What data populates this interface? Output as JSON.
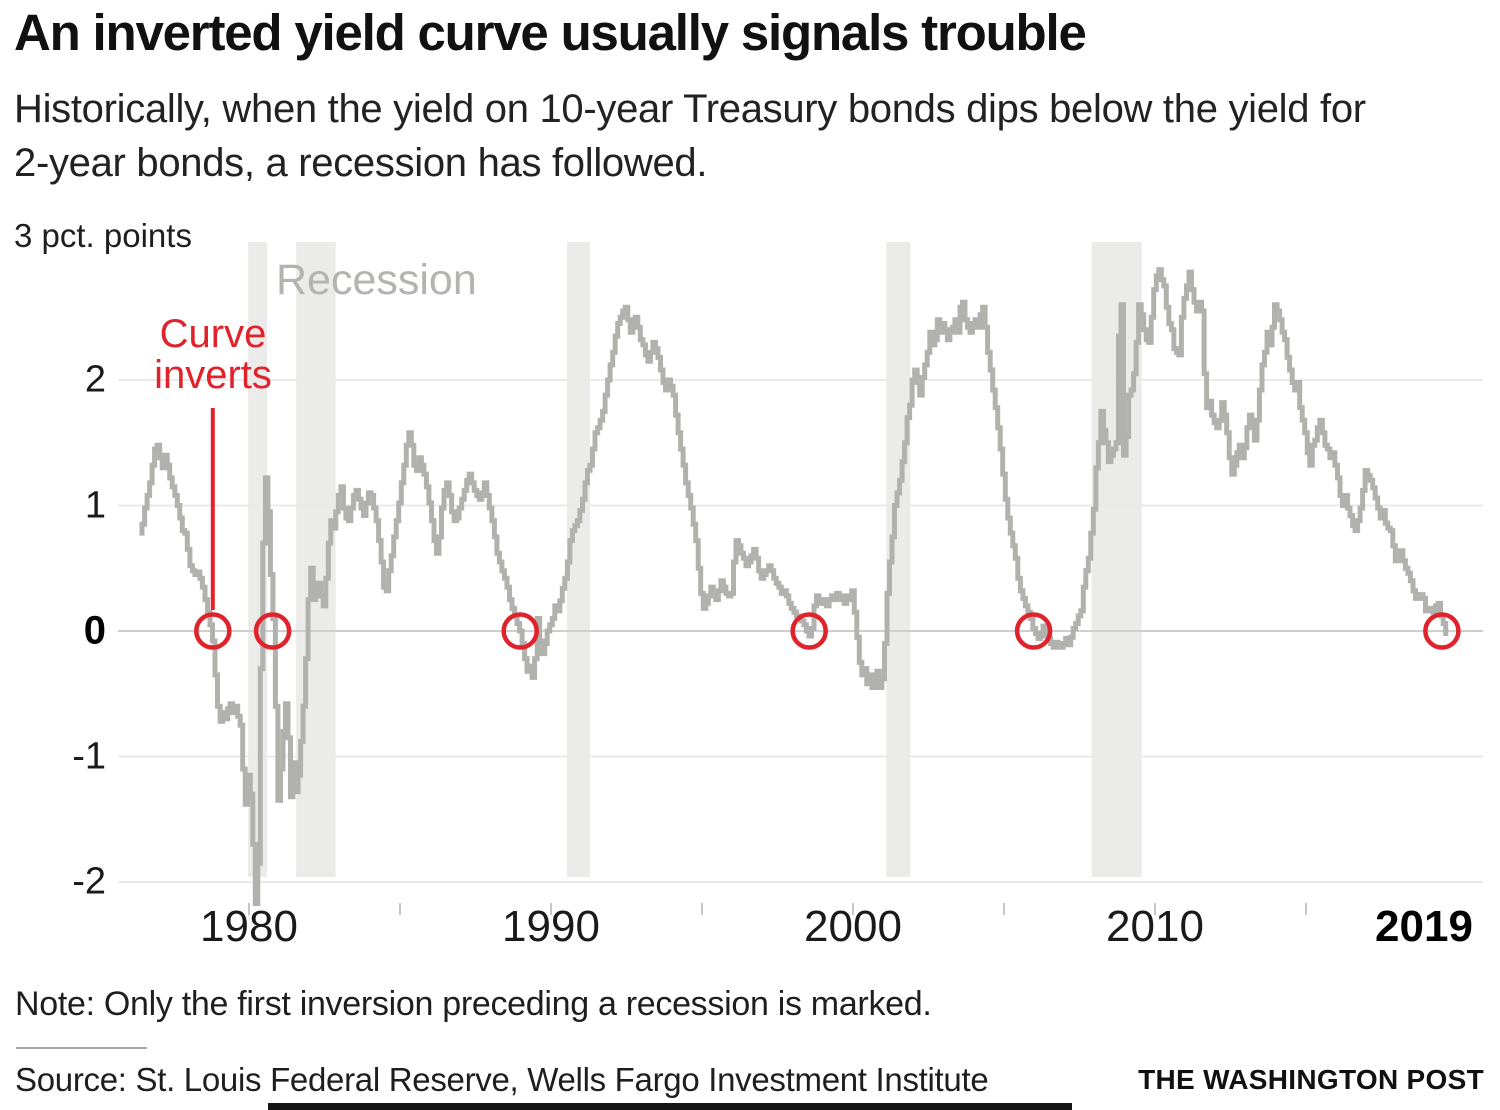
{
  "header": {
    "title": "An inverted yield curve usually signals trouble",
    "subtitle_line1": "Historically, when the yield on 10-year Treasury bonds dips below the yield for",
    "subtitle_line2": "2-year bonds, a recession has followed."
  },
  "footer": {
    "note": "Note: Only the first inversion preceding a recession is marked.",
    "source": "Source: St. Louis Federal Reserve, Wells Fargo Investment Institute",
    "credit": "THE WASHINGTON POST"
  },
  "chart_data": {
    "type": "line",
    "title": "An inverted yield curve usually signals trouble",
    "unit_label": "3 pct. points",
    "xlabel": "",
    "ylabel": "pct. points",
    "ylim": [
      -2.4,
      3
    ],
    "xlim": [
      1976.1,
      2020.3
    ],
    "grid": true,
    "y_axis": {
      "ticks": [
        2,
        1,
        0,
        -1,
        -2
      ],
      "tick_labels": [
        "2",
        "1",
        "0",
        "-1",
        "-2"
      ],
      "zero_emphasized": true
    },
    "x_axis": {
      "tick_labels": [
        "1980",
        "1990",
        "2000",
        "2010",
        "2019"
      ],
      "label_years": [
        1980,
        1990,
        2000,
        2010,
        2019
      ],
      "minor_ticks": [
        1980,
        1985,
        1990,
        1995,
        2000,
        2005,
        2010,
        2015
      ],
      "last_label_bold": true
    },
    "annotations": {
      "recession_label": "Recession",
      "inversion_label_line1": "Curve",
      "inversion_label_line2": "inverts"
    },
    "recessions": [
      [
        1979.97,
        1980.6
      ],
      [
        1981.56,
        1982.87
      ],
      [
        1990.53,
        1991.29
      ],
      [
        2001.1,
        2001.9
      ],
      [
        2007.9,
        2009.56
      ]
    ],
    "inversion_markers_years": [
      1978.8,
      1980.78,
      1988.98,
      1998.55,
      2005.98,
      2019.5
    ],
    "series": {
      "name": "10-year Treasury yield minus 2-year Treasury yield (pct. points)",
      "frequency": "monthly",
      "start_year": 1976,
      "start_month": 5,
      "values": [
        0.78,
        0.85,
        0.98,
        1.08,
        1.18,
        1.32,
        1.45,
        1.48,
        1.38,
        1.3,
        1.4,
        1.32,
        1.22,
        1.15,
        1.08,
        1.0,
        0.9,
        0.8,
        0.78,
        0.65,
        0.52,
        0.48,
        0.45,
        0.47,
        0.42,
        0.35,
        0.25,
        0.15,
        0.05,
        -0.08,
        -0.35,
        -0.6,
        -0.72,
        -0.65,
        -0.7,
        -0.62,
        -0.58,
        -0.65,
        -0.6,
        -0.68,
        -0.75,
        -1.1,
        -1.38,
        -1.15,
        -1.3,
        -1.7,
        -2.35,
        -1.85,
        -0.3,
        0.7,
        1.22,
        0.95,
        0.45,
        0.1,
        -0.6,
        -1.35,
        -1.1,
        -0.8,
        -0.58,
        -0.85,
        -1.32,
        -1.05,
        -1.28,
        -1.15,
        -0.88,
        -0.6,
        -0.22,
        0.25,
        0.5,
        0.25,
        0.3,
        0.38,
        0.28,
        0.2,
        0.42,
        0.7,
        0.88,
        0.82,
        0.95,
        1.08,
        1.15,
        0.98,
        0.9,
        0.88,
        0.98,
        1.08,
        1.12,
        1.05,
        0.98,
        0.92,
        1.02,
        1.1,
        1.08,
        0.98,
        0.88,
        0.72,
        0.55,
        0.35,
        0.32,
        0.48,
        0.6,
        0.75,
        0.88,
        1.02,
        1.18,
        1.32,
        1.48,
        1.58,
        1.48,
        1.32,
        1.28,
        1.38,
        1.32,
        1.25,
        1.15,
        1.02,
        0.88,
        0.72,
        0.62,
        0.75,
        0.98,
        1.12,
        1.18,
        1.08,
        0.95,
        0.88,
        0.9,
        0.98,
        1.05,
        1.12,
        1.2,
        1.25,
        1.18,
        1.12,
        1.08,
        1.05,
        1.1,
        1.18,
        1.08,
        0.98,
        0.88,
        0.75,
        0.62,
        0.55,
        0.48,
        0.42,
        0.35,
        0.25,
        0.18,
        0.12,
        0.06,
        0.0,
        -0.1,
        -0.22,
        -0.32,
        -0.28,
        -0.37,
        -0.22,
        0.1,
        -0.08,
        -0.18,
        -0.1,
        0.0,
        0.05,
        0.1,
        0.2,
        0.16,
        0.24,
        0.34,
        0.42,
        0.55,
        0.72,
        0.8,
        0.84,
        0.88,
        0.96,
        1.05,
        1.18,
        1.28,
        1.32,
        1.45,
        1.58,
        1.62,
        1.68,
        1.75,
        1.88,
        2.0,
        2.12,
        2.22,
        2.35,
        2.45,
        2.5,
        2.55,
        2.58,
        2.48,
        2.38,
        2.45,
        2.5,
        2.42,
        2.32,
        2.28,
        2.2,
        2.15,
        2.22,
        2.3,
        2.25,
        2.18,
        2.08,
        1.98,
        1.92,
        2.0,
        1.95,
        1.88,
        1.72,
        1.58,
        1.45,
        1.32,
        1.18,
        1.08,
        0.98,
        0.85,
        0.72,
        0.5,
        0.3,
        0.18,
        0.22,
        0.28,
        0.35,
        0.3,
        0.25,
        0.32,
        0.4,
        0.35,
        0.3,
        0.28,
        0.3,
        0.55,
        0.72,
        0.68,
        0.62,
        0.58,
        0.52,
        0.55,
        0.6,
        0.65,
        0.58,
        0.48,
        0.42,
        0.45,
        0.48,
        0.52,
        0.48,
        0.42,
        0.38,
        0.35,
        0.3,
        0.32,
        0.28,
        0.22,
        0.18,
        0.15,
        0.12,
        0.1,
        0.08,
        0.05,
        0.0,
        -0.04,
        0.02,
        0.2,
        0.28,
        0.22,
        0.25,
        0.22,
        0.2,
        0.25,
        0.28,
        0.25,
        0.3,
        0.28,
        0.25,
        0.22,
        0.28,
        0.25,
        0.32,
        0.15,
        -0.05,
        -0.25,
        -0.35,
        -0.3,
        -0.42,
        -0.35,
        -0.45,
        -0.4,
        -0.32,
        -0.45,
        -0.38,
        -0.1,
        0.3,
        0.55,
        0.75,
        1.0,
        1.1,
        1.2,
        1.35,
        1.5,
        1.7,
        1.8,
        2.0,
        2.08,
        1.98,
        1.88,
        2.02,
        2.12,
        2.22,
        2.38,
        2.28,
        2.32,
        2.48,
        2.38,
        2.45,
        2.4,
        2.32,
        2.38,
        2.42,
        2.48,
        2.38,
        2.58,
        2.62,
        2.48,
        2.42,
        2.38,
        2.45,
        2.48,
        2.42,
        2.52,
        2.58,
        2.42,
        2.22,
        2.08,
        1.92,
        1.78,
        1.62,
        1.45,
        1.25,
        1.05,
        0.9,
        0.78,
        0.68,
        0.58,
        0.42,
        0.32,
        0.26,
        0.2,
        0.15,
        0.1,
        0.02,
        -0.02,
        -0.06,
        -0.04,
        0.04,
        -0.02,
        -0.06,
        -0.1,
        -0.13,
        -0.09,
        -0.11,
        -0.13,
        -0.1,
        -0.06,
        -0.11,
        -0.05,
        0.02,
        0.06,
        0.12,
        0.16,
        0.35,
        0.48,
        0.58,
        0.78,
        0.97,
        1.3,
        1.5,
        1.75,
        1.6,
        1.5,
        1.35,
        1.4,
        1.45,
        1.5,
        2.35,
        2.6,
        1.4,
        1.55,
        1.88,
        1.92,
        2.05,
        2.3,
        2.6,
        2.52,
        2.4,
        2.32,
        2.3,
        2.5,
        2.72,
        2.83,
        2.88,
        2.8,
        2.75,
        2.58,
        2.45,
        2.4,
        2.25,
        2.22,
        2.2,
        2.5,
        2.65,
        2.75,
        2.86,
        2.72,
        2.62,
        2.55,
        2.62,
        2.55,
        2.05,
        1.78,
        1.83,
        1.72,
        1.66,
        1.62,
        1.68,
        1.82,
        1.72,
        1.58,
        1.38,
        1.25,
        1.32,
        1.42,
        1.48,
        1.38,
        1.46,
        1.62,
        1.72,
        1.68,
        1.52,
        1.68,
        1.92,
        2.12,
        2.22,
        2.38,
        2.28,
        2.42,
        2.6,
        2.55,
        2.48,
        2.38,
        2.32,
        2.18,
        2.08,
        1.98,
        1.92,
        1.98,
        1.78,
        1.68,
        1.58,
        1.42,
        1.32,
        1.48,
        1.52,
        1.62,
        1.68,
        1.58,
        1.48,
        1.45,
        1.38,
        1.42,
        1.32,
        1.22,
        1.08,
        1.0,
        1.08,
        0.98,
        0.92,
        0.84,
        0.8,
        0.88,
        0.98,
        1.12,
        1.28,
        1.24,
        1.2,
        1.14,
        1.06,
        0.98,
        0.9,
        0.96,
        0.86,
        0.82,
        0.8,
        0.68,
        0.56,
        0.56,
        0.64,
        0.56,
        0.5,
        0.46,
        0.4,
        0.32,
        0.26,
        0.26,
        0.29,
        0.26,
        0.16,
        0.18,
        0.17,
        0.15,
        0.2,
        0.22,
        0.12,
        0.06,
        -0.04
      ]
    },
    "colors": {
      "line": "#b1b1ad",
      "recession_band": "#ebebe9",
      "grid": "#eaeae8",
      "zero_line": "#cfcfcd",
      "tick": "#c6c6c4",
      "accent": "#e0222b",
      "recession_label": "#b3b3b0"
    }
  }
}
